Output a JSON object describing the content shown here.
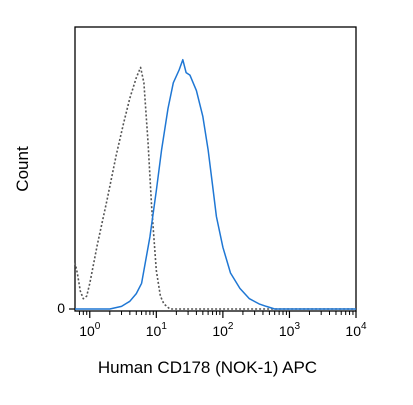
{
  "chart_data": {
    "type": "area",
    "title": "",
    "xlabel": "Human CD178 (NOK-1) APC",
    "ylabel": "Count",
    "x_scale": "log",
    "xlim": [
      0.6,
      10000
    ],
    "ylim": [
      0,
      100
    ],
    "x_ticks": [
      {
        "base": "10",
        "exp": "0",
        "value": 1
      },
      {
        "base": "10",
        "exp": "1",
        "value": 10
      },
      {
        "base": "10",
        "exp": "2",
        "value": 100
      },
      {
        "base": "10",
        "exp": "3",
        "value": 1000
      },
      {
        "base": "10",
        "exp": "4",
        "value": 10000
      }
    ],
    "y_ticks": [
      {
        "label": "0",
        "value": 0
      }
    ],
    "grid": false,
    "legend": "none",
    "series": [
      {
        "color": "#555555",
        "style": "dotted",
        "points": [
          [
            0.6,
            18
          ],
          [
            0.65,
            14
          ],
          [
            0.72,
            7
          ],
          [
            0.8,
            4
          ],
          [
            0.9,
            5
          ],
          [
            1.0,
            10
          ],
          [
            1.3,
            25
          ],
          [
            1.8,
            42
          ],
          [
            2.5,
            60
          ],
          [
            3.2,
            72
          ],
          [
            4.0,
            82
          ],
          [
            5.0,
            90
          ],
          [
            5.8,
            94
          ],
          [
            6.5,
            88
          ],
          [
            7.5,
            65
          ],
          [
            8.5,
            40
          ],
          [
            10.0,
            15
          ],
          [
            11.5,
            5
          ],
          [
            13.0,
            2
          ],
          [
            16.0,
            0
          ],
          [
            25.0,
            0
          ],
          [
            100,
            0
          ],
          [
            1000,
            0
          ],
          [
            10000,
            0
          ]
        ]
      },
      {
        "color": "#1f77d4",
        "style": "solid",
        "points": [
          [
            0.6,
            0
          ],
          [
            2.0,
            0
          ],
          [
            3.0,
            1
          ],
          [
            4.0,
            3
          ],
          [
            5.0,
            6
          ],
          [
            6.0,
            10
          ],
          [
            8.0,
            28
          ],
          [
            10.0,
            46
          ],
          [
            12.0,
            62
          ],
          [
            15.0,
            78
          ],
          [
            18.0,
            88
          ],
          [
            22.0,
            93
          ],
          [
            25.0,
            97
          ],
          [
            28.0,
            92
          ],
          [
            32.0,
            91
          ],
          [
            40.0,
            85
          ],
          [
            50.0,
            75
          ],
          [
            60.0,
            62
          ],
          [
            70.0,
            48
          ],
          [
            80.0,
            36
          ],
          [
            100.0,
            24
          ],
          [
            130.0,
            14
          ],
          [
            180.0,
            8
          ],
          [
            250.0,
            4
          ],
          [
            350.0,
            2
          ],
          [
            450.0,
            1
          ],
          [
            600.0,
            0
          ],
          [
            1000,
            0
          ],
          [
            10000,
            0
          ]
        ]
      }
    ]
  }
}
